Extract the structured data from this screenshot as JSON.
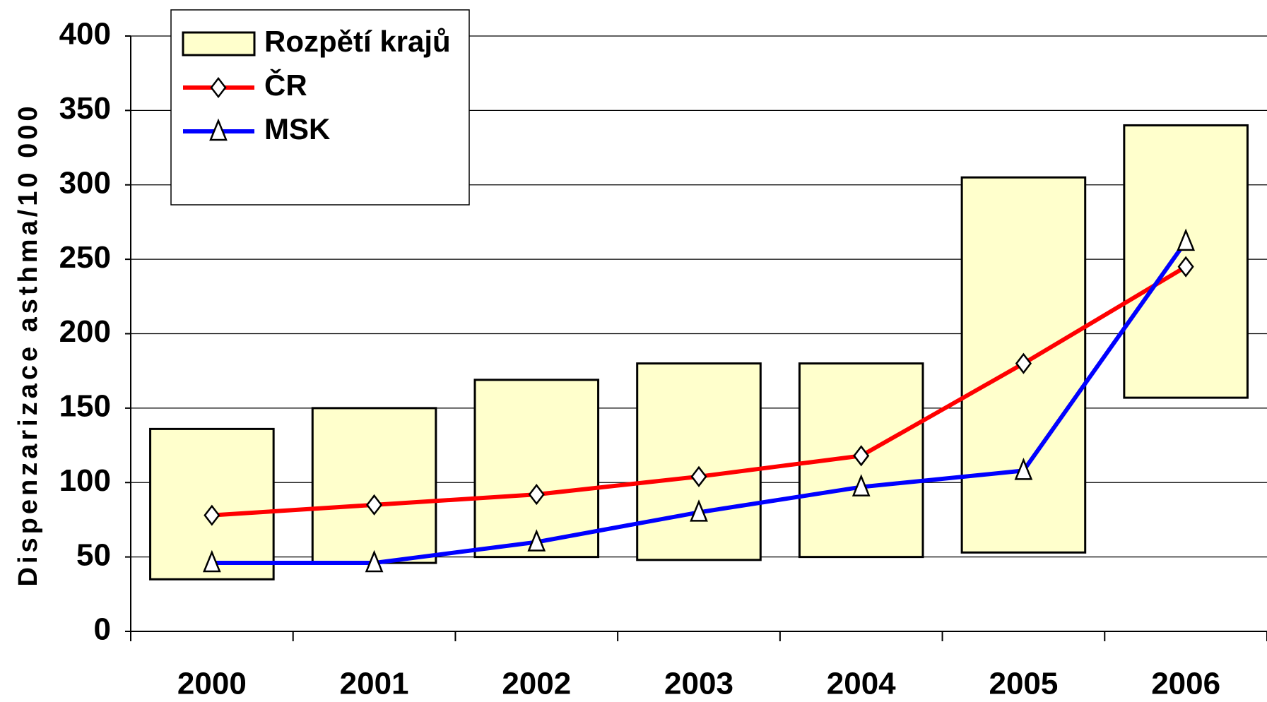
{
  "chart_data": {
    "type": "combo",
    "y_label": "Dispenzarizace asthma/10 000",
    "categories": [
      "2000",
      "2001",
      "2002",
      "2003",
      "2004",
      "2005",
      "2006"
    ],
    "series": [
      {
        "name": "Rozpětí krajů",
        "type": "range",
        "color": "#ffffcc",
        "low": [
          35,
          46,
          50,
          48,
          50,
          53,
          157
        ],
        "high": [
          136,
          150,
          169,
          180,
          180,
          305,
          340
        ]
      },
      {
        "name": "ČR",
        "type": "line",
        "marker": "diamond",
        "color": "#ff0000",
        "values": [
          78,
          85,
          92,
          104,
          118,
          180,
          245
        ]
      },
      {
        "name": "MSK",
        "type": "line",
        "marker": "triangle",
        "color": "#0000ff",
        "values": [
          46,
          46,
          60,
          80,
          97,
          108,
          262
        ]
      }
    ],
    "ylim": [
      0,
      400
    ],
    "yticks": [
      0,
      50,
      100,
      150,
      200,
      250,
      300,
      350,
      400
    ],
    "grid": true,
    "legend": "upper-left"
  }
}
